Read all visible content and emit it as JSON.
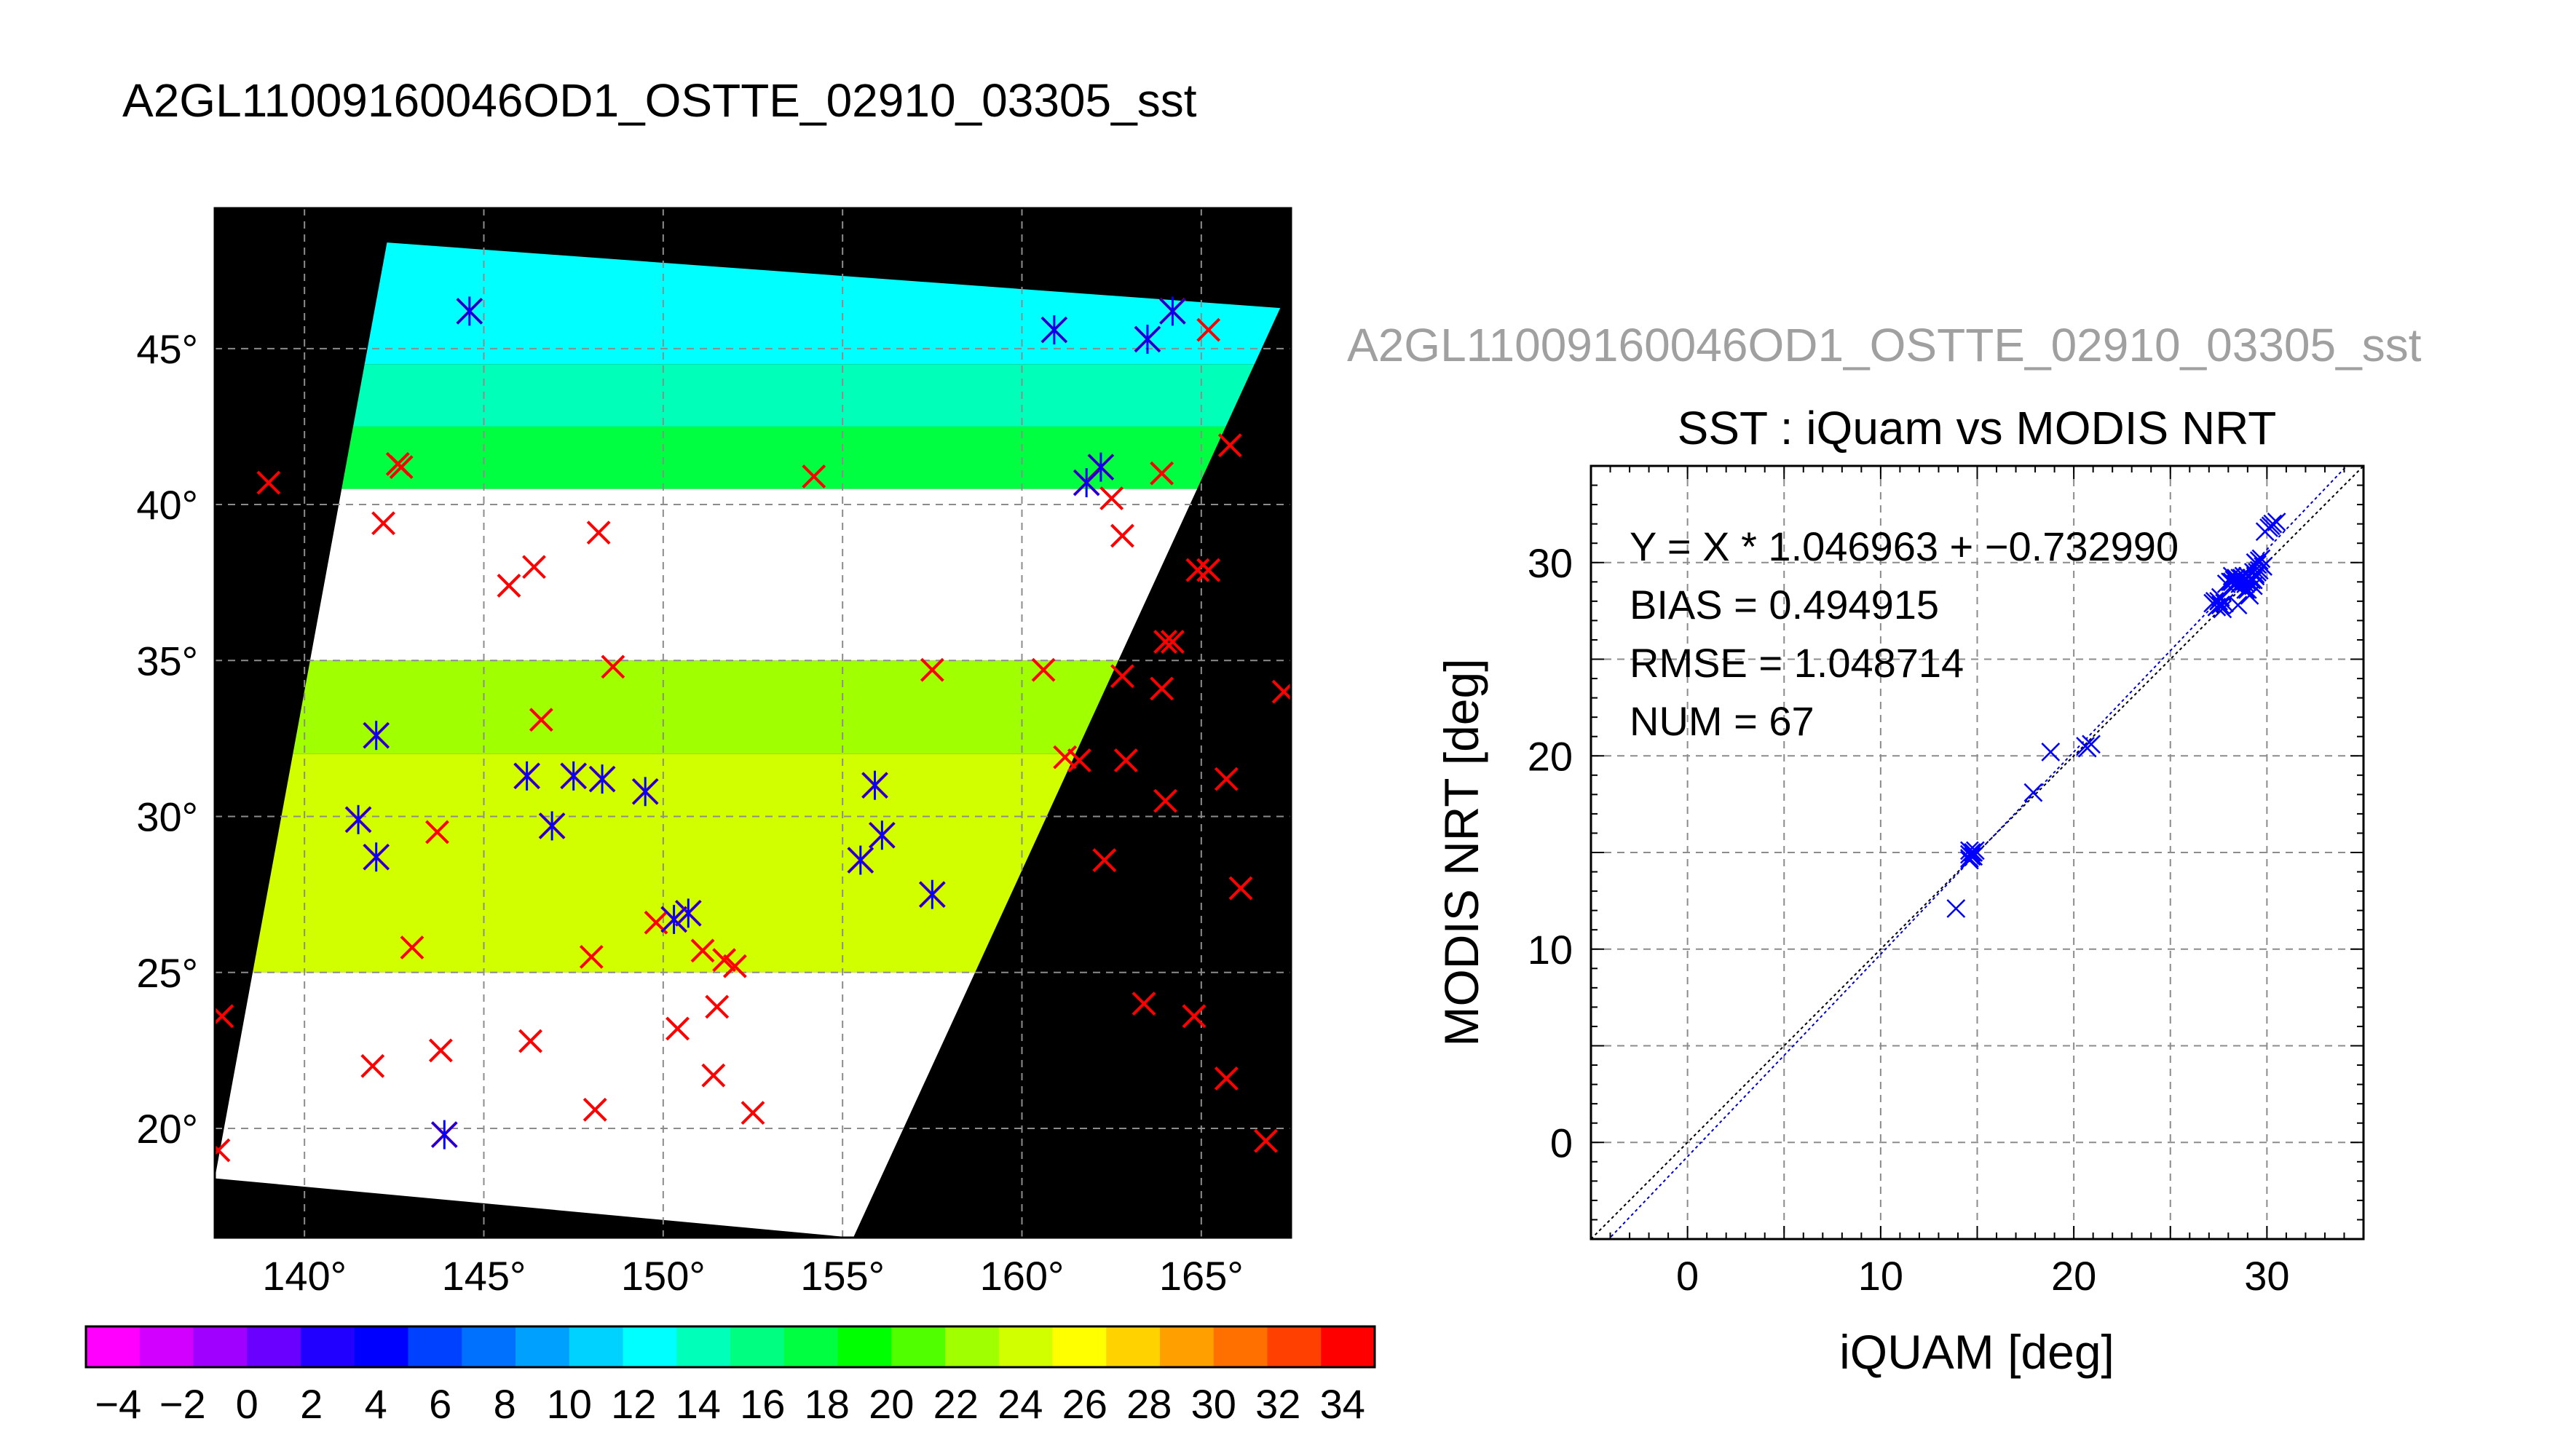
{
  "page_title": "A2GL11009160046OD1_OSTTE_02910_03305_sst",
  "overlay_title": "A2GL11009160046OD1_OSTTE_02910_03305_sst",
  "colors": {
    "background": "#ffffff",
    "map_background": "#000000",
    "cloud_mask": "#ffffff",
    "marker_red": "#ff0000",
    "marker_blue": "#0000ff",
    "grid": "#8c8c8c",
    "fit_line": "#0000cc",
    "one_to_one_line": "#000000",
    "overlay_title": "#a0a0a0"
  },
  "chart_data": [
    {
      "type": "heatmap",
      "title": "A2GL11009160046OD1_OSTTE_02910_03305_sst",
      "x_unit_suffix": "°",
      "y_unit_suffix": "°",
      "xlim": [
        137.5,
        167.5
      ],
      "ylim": [
        16.5,
        49.5
      ],
      "x_ticks": [
        140,
        145,
        150,
        155,
        160,
        165
      ],
      "y_ticks": [
        20,
        25,
        30,
        35,
        40,
        45
      ],
      "x_tick_labels": [
        "140°",
        "145°",
        "150°",
        "155°",
        "160°",
        "165°"
      ],
      "y_tick_labels": [
        "20°",
        "25°",
        "30°",
        "35°",
        "40°",
        "45°"
      ],
      "grid": true,
      "swath_corners_lonlat": [
        [
          142.3,
          48.4
        ],
        [
          167.2,
          46.3
        ],
        [
          155.3,
          16.5
        ],
        [
          137.5,
          18.4
        ]
      ],
      "sst_bands": [
        {
          "lat_min": 44.5,
          "lat_max": 48.5,
          "value": 15
        },
        {
          "lat_min": 42.5,
          "lat_max": 44.5,
          "value": 18
        },
        {
          "lat_min": 40.5,
          "lat_max": 42.5,
          "value": 21
        },
        {
          "lat_min": 35.0,
          "lat_max": 40.5,
          "value": null
        },
        {
          "lat_min": 32.0,
          "lat_max": 35.0,
          "value": 27
        },
        {
          "lat_min": 25.0,
          "lat_max": 32.0,
          "value": 30
        },
        {
          "lat_min": 16.5,
          "lat_max": 25.0,
          "value": null
        }
      ],
      "colorbar": {
        "vmin": -5,
        "vmax": 35,
        "bin_width": 2,
        "colors": [
          "#ff00ff",
          "#d200ff",
          "#a000ff",
          "#6a00ff",
          "#2200ff",
          "#0000ff",
          "#0040ff",
          "#0070ff",
          "#00a0ff",
          "#00d2ff",
          "#00ffff",
          "#00ffb8",
          "#00ff80",
          "#00ff40",
          "#00ff00",
          "#50ff00",
          "#a0ff00",
          "#d2ff00",
          "#ffff00",
          "#ffd200",
          "#ffa000",
          "#ff7000",
          "#ff4000",
          "#ff0000"
        ],
        "tick_labels": [
          "−4",
          "−2",
          "0",
          "2",
          "4",
          "6",
          "8",
          "10",
          "12",
          "14",
          "16",
          "18",
          "20",
          "22",
          "24",
          "26",
          "28",
          "30",
          "32",
          "34"
        ],
        "tick_values": [
          -4,
          -2,
          0,
          2,
          4,
          6,
          8,
          10,
          12,
          14,
          16,
          18,
          20,
          22,
          24,
          26,
          28,
          30,
          32,
          34
        ]
      },
      "matched_points_lonlat": [
        [
          144.6,
          46.2
        ],
        [
          160.9,
          45.6
        ],
        [
          163.5,
          45.3
        ],
        [
          164.2,
          46.2
        ],
        [
          162.2,
          41.2
        ],
        [
          161.8,
          40.7
        ],
        [
          142.0,
          32.6
        ],
        [
          146.2,
          31.3
        ],
        [
          147.5,
          31.3
        ],
        [
          148.3,
          31.2
        ],
        [
          149.5,
          30.8
        ],
        [
          141.5,
          29.9
        ],
        [
          146.9,
          29.7
        ],
        [
          142.0,
          28.7
        ],
        [
          150.7,
          26.9
        ],
        [
          150.3,
          26.7
        ],
        [
          155.9,
          31.0
        ],
        [
          156.1,
          29.4
        ],
        [
          155.5,
          28.6
        ],
        [
          157.5,
          27.5
        ],
        [
          143.9,
          19.8
        ]
      ],
      "unmatched_points_lonlat": [
        [
          139.0,
          40.7
        ],
        [
          142.7,
          41.2
        ],
        [
          142.6,
          41.3
        ],
        [
          142.2,
          39.4
        ],
        [
          148.2,
          39.1
        ],
        [
          154.2,
          40.9
        ],
        [
          162.5,
          40.2
        ],
        [
          163.9,
          41.0
        ],
        [
          162.8,
          39.0
        ],
        [
          145.7,
          37.4
        ],
        [
          146.4,
          38.0
        ],
        [
          148.6,
          34.8
        ],
        [
          146.6,
          33.1
        ],
        [
          157.5,
          34.7
        ],
        [
          160.6,
          34.7
        ],
        [
          161.2,
          31.9
        ],
        [
          161.6,
          31.8
        ],
        [
          162.9,
          31.8
        ],
        [
          162.8,
          34.5
        ],
        [
          163.9,
          34.1
        ],
        [
          164.0,
          35.6
        ],
        [
          164.2,
          35.6
        ],
        [
          164.9,
          37.9
        ],
        [
          165.2,
          37.9
        ],
        [
          165.8,
          41.9
        ],
        [
          165.2,
          45.6
        ],
        [
          167.3,
          34.0
        ],
        [
          165.7,
          31.2
        ],
        [
          164.0,
          30.5
        ],
        [
          162.3,
          28.6
        ],
        [
          166.1,
          27.7
        ],
        [
          163.4,
          24.0
        ],
        [
          164.8,
          23.6
        ],
        [
          165.7,
          21.6
        ],
        [
          166.8,
          19.6
        ],
        [
          143.7,
          29.5
        ],
        [
          143.0,
          25.8
        ],
        [
          148.0,
          25.5
        ],
        [
          151.1,
          25.7
        ],
        [
          151.7,
          25.4
        ],
        [
          152.0,
          25.2
        ],
        [
          149.8,
          26.6
        ],
        [
          150.4,
          23.2
        ],
        [
          151.5,
          23.9
        ],
        [
          146.3,
          22.8
        ],
        [
          141.9,
          22.0
        ],
        [
          143.8,
          22.5
        ],
        [
          151.4,
          21.7
        ],
        [
          152.5,
          20.5
        ],
        [
          148.1,
          20.6
        ],
        [
          137.7,
          23.6
        ],
        [
          137.6,
          19.3
        ]
      ]
    },
    {
      "type": "scatter",
      "title": "SST : iQuam vs MODIS NRT",
      "xlabel": "iQUAM [deg]",
      "ylabel": "MODIS NRT [deg]",
      "xlim": [
        -5,
        35
      ],
      "ylim": [
        -5,
        35
      ],
      "x_ticks": [
        0,
        10,
        20,
        30
      ],
      "y_ticks": [
        0,
        10,
        20,
        30
      ],
      "x_tick_labels": [
        "0",
        "10",
        "20",
        "30"
      ],
      "y_tick_labels": [
        "0",
        "10",
        "20",
        "30"
      ],
      "minor_tick_step": 1,
      "grid_step": 5,
      "grid": true,
      "fit": {
        "slope": 1.046963,
        "intercept": -0.73299
      },
      "stats_lines": [
        "Y = X * 1.046963 + −0.732990",
        "BIAS = 0.494915",
        "RMSE = 1.048714",
        "NUM = 67"
      ],
      "points": [
        [
          13.9,
          12.1
        ],
        [
          14.6,
          14.6
        ],
        [
          14.6,
          14.9
        ],
        [
          14.7,
          15.0
        ],
        [
          14.8,
          14.8
        ],
        [
          14.9,
          15.1
        ],
        [
          14.6,
          15.1
        ],
        [
          14.8,
          15.0
        ],
        [
          17.9,
          18.1
        ],
        [
          18.8,
          20.2
        ],
        [
          20.6,
          20.5
        ],
        [
          20.9,
          20.6
        ],
        [
          20.7,
          20.4
        ],
        [
          27.2,
          27.9
        ],
        [
          27.4,
          27.7
        ],
        [
          27.6,
          27.8
        ],
        [
          27.5,
          28.0
        ],
        [
          27.3,
          28.0
        ],
        [
          27.8,
          27.9
        ],
        [
          28.2,
          29.0
        ],
        [
          28.4,
          29.2
        ],
        [
          28.5,
          29.0
        ],
        [
          28.7,
          29.2
        ],
        [
          28.8,
          29.0
        ],
        [
          28.6,
          28.9
        ],
        [
          28.9,
          29.2
        ],
        [
          29.0,
          29.0
        ],
        [
          28.3,
          29.1
        ],
        [
          28.1,
          29.0
        ],
        [
          29.1,
          29.0
        ],
        [
          29.2,
          29.2
        ],
        [
          29.3,
          29.1
        ],
        [
          29.4,
          29.3
        ],
        [
          28.9,
          28.9
        ],
        [
          29.0,
          29.3
        ],
        [
          28.7,
          29.0
        ],
        [
          28.5,
          27.8
        ],
        [
          29.1,
          28.3
        ],
        [
          28.9,
          28.6
        ],
        [
          29.5,
          29.5
        ],
        [
          29.6,
          29.6
        ],
        [
          29.5,
          29.9
        ],
        [
          29.7,
          30.2
        ],
        [
          29.6,
          30.1
        ],
        [
          29.8,
          29.8
        ],
        [
          29.4,
          30.0
        ],
        [
          29.9,
          31.6
        ],
        [
          30.1,
          31.8
        ],
        [
          30.3,
          32.0
        ],
        [
          30.5,
          32.1
        ],
        [
          30.2,
          31.9
        ],
        [
          28.4,
          28.9
        ],
        [
          28.6,
          29.2
        ],
        [
          28.8,
          29.3
        ],
        [
          29.2,
          29.1
        ],
        [
          29.4,
          29.4
        ],
        [
          29.3,
          29.5
        ],
        [
          28.2,
          29.3
        ],
        [
          28.3,
          28.9
        ],
        [
          27.9,
          28.9
        ],
        [
          27.6,
          28.2
        ],
        [
          27.7,
          27.6
        ],
        [
          29.0,
          28.6
        ],
        [
          29.3,
          28.8
        ],
        [
          14.7,
          14.8
        ],
        [
          14.8,
          15.0
        ],
        [
          14.6,
          14.7
        ]
      ]
    }
  ]
}
